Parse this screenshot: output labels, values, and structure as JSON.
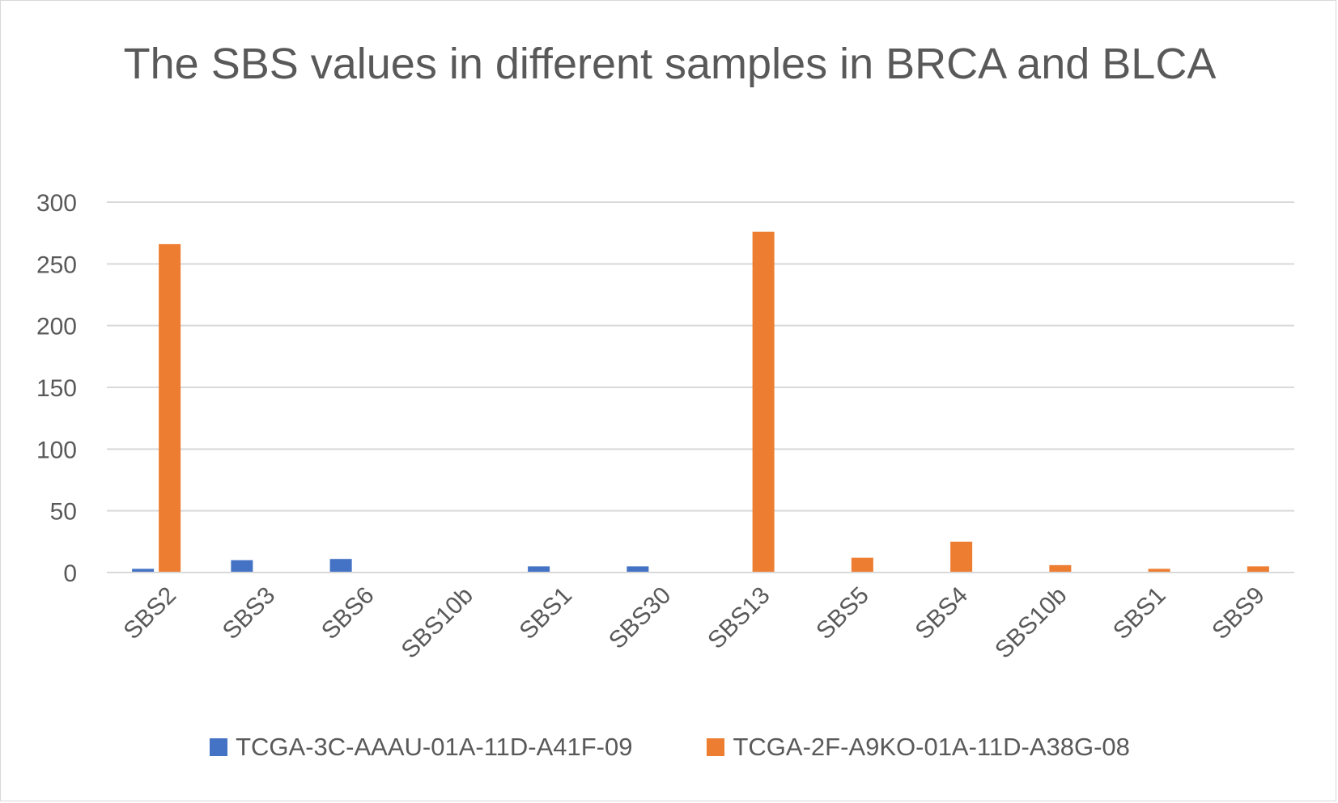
{
  "chart_data": {
    "type": "bar",
    "title": "The SBS values in different samples in BRCA and BLCA",
    "xlabel": "",
    "ylabel": "",
    "ylim": [
      0,
      300
    ],
    "yticks": [
      0,
      50,
      100,
      150,
      200,
      250,
      300
    ],
    "grid": true,
    "legend_position": "bottom",
    "categories": [
      "SBS2",
      "SBS3",
      "SBS6",
      "SBS10b",
      "SBS1",
      "SBS30",
      "SBS13",
      "SBS5",
      "SBS4",
      "SBS10b",
      "SBS1",
      "SBS9"
    ],
    "series": [
      {
        "name": "TCGA-3C-AAAU-01A-11D-A41F-09",
        "color": "#4472c4",
        "values": [
          3,
          10,
          11,
          0,
          5,
          5,
          0,
          0,
          0,
          0,
          0,
          0
        ]
      },
      {
        "name": "TCGA-2F-A9KO-01A-11D-A38G-08",
        "color": "#ed7d31",
        "values": [
          266,
          0,
          0,
          0,
          0,
          0,
          276,
          12,
          25,
          6,
          3,
          5
        ]
      }
    ]
  }
}
